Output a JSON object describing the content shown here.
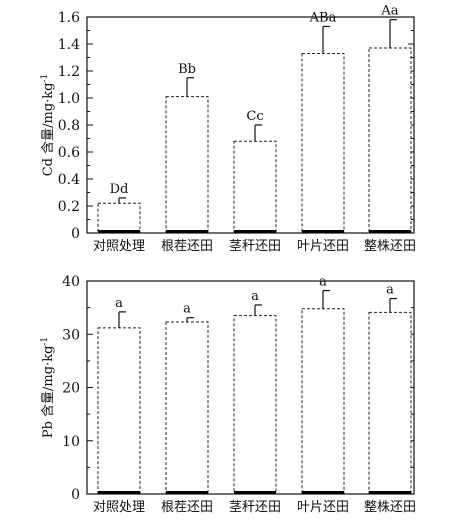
{
  "chart_data": [
    {
      "type": "bar",
      "categories": [
        "对照处理",
        "根茬还田",
        "茎秆还田",
        "叶片还田",
        "整株还田"
      ],
      "values": [
        0.22,
        1.01,
        0.68,
        1.33,
        1.37
      ],
      "errors": [
        0.04,
        0.14,
        0.12,
        0.2,
        0.21
      ],
      "significance": [
        "Dd",
        "Bb",
        "Cc",
        "ABa",
        "Aa"
      ],
      "ylabel_main": "Cd 含量/mg·kg",
      "ylabel_sup": "-1",
      "xlabel": "",
      "ylim": [
        0,
        1.6
      ],
      "yticks": [
        "0",
        "0.2",
        "0.4",
        "0.6",
        "0.8",
        "1.0",
        "1.2",
        "1.4",
        "1.6"
      ],
      "grid": false,
      "bar_style": "white fill, dashed outline, solid base"
    },
    {
      "type": "bar",
      "categories": [
        "对照处理",
        "根茬还田",
        "茎秆还田",
        "叶片还田",
        "整株还田"
      ],
      "values": [
        31.2,
        32.3,
        33.5,
        34.8,
        34.1
      ],
      "errors": [
        3.0,
        0.8,
        2.0,
        3.4,
        2.6
      ],
      "significance": [
        "a",
        "a",
        "a",
        "a",
        "a"
      ],
      "ylabel_main": "Pb 含量/mg·kg",
      "ylabel_sup": "-1",
      "xlabel": "",
      "ylim": [
        0,
        40
      ],
      "yticks": [
        "0",
        "10",
        "20",
        "30",
        "40"
      ],
      "grid": false,
      "bar_style": "white fill, dashed outline, solid base"
    }
  ]
}
